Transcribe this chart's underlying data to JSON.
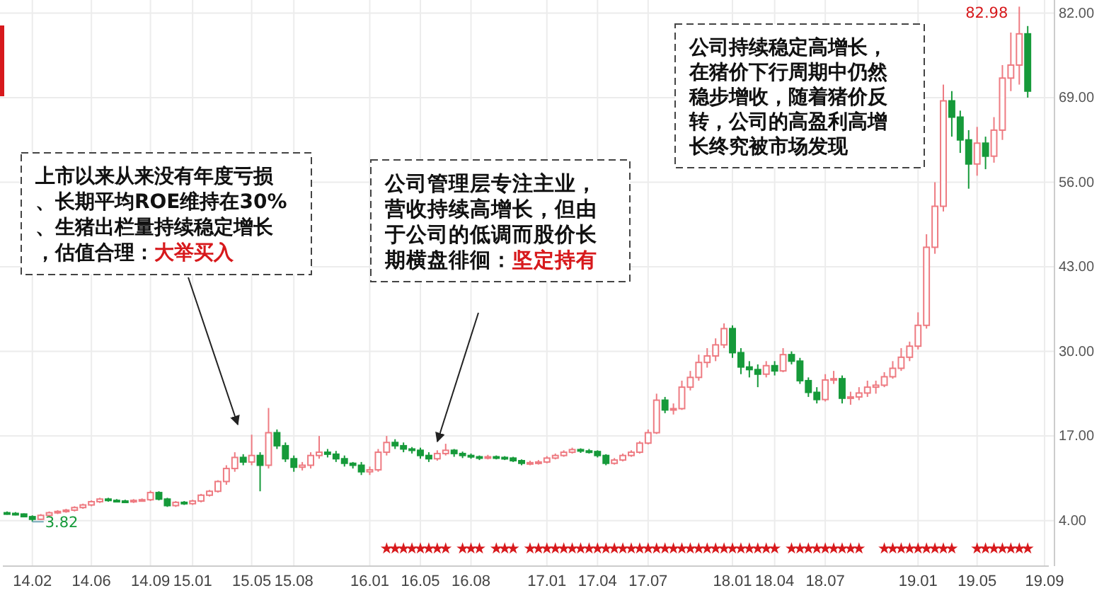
{
  "chart_data": {
    "type": "candlestick",
    "categories": [
      null,
      null,
      null,
      "14.02",
      null,
      null,
      null,
      null,
      null,
      null,
      "14.06",
      null,
      null,
      null,
      null,
      null,
      null,
      "14.09",
      null,
      null,
      null,
      null,
      "15.01",
      null,
      null,
      null,
      null,
      null,
      null,
      "15.05",
      null,
      null,
      null,
      null,
      "15.08",
      null,
      null,
      null,
      null,
      null,
      null,
      null,
      null,
      "16.01",
      null,
      null,
      null,
      null,
      null,
      "16.05",
      null,
      null,
      null,
      null,
      null,
      "16.08",
      null,
      null,
      null,
      null,
      null,
      null,
      null,
      null,
      "17.01",
      null,
      null,
      null,
      null,
      null,
      "17.04",
      null,
      null,
      null,
      null,
      null,
      "17.07",
      null,
      null,
      null,
      null,
      null,
      null,
      null,
      null,
      null,
      "18.01",
      null,
      null,
      null,
      null,
      "18.04",
      null,
      null,
      null,
      null,
      null,
      "18.07",
      null,
      null,
      null,
      null,
      null,
      null,
      null,
      null,
      null,
      null,
      "19.01",
      null,
      null,
      null,
      null,
      null,
      null,
      "19.05",
      null,
      null,
      null,
      null,
      null,
      null,
      null,
      "19.09"
    ],
    "ohlc": [
      [
        5.2,
        5.4,
        4.9,
        5.1
      ],
      [
        5.1,
        5.3,
        4.8,
        5.0
      ],
      [
        5.0,
        5.1,
        4.5,
        4.6
      ],
      [
        4.6,
        4.8,
        3.82,
        4.2
      ],
      [
        4.2,
        5.0,
        4.1,
        4.8
      ],
      [
        4.8,
        5.4,
        4.6,
        5.2
      ],
      [
        5.2,
        5.6,
        5.0,
        5.4
      ],
      [
        5.4,
        5.8,
        5.2,
        5.6
      ],
      [
        5.6,
        6.2,
        5.4,
        6.0
      ],
      [
        6.0,
        6.6,
        5.8,
        6.4
      ],
      [
        6.4,
        7.1,
        6.2,
        6.9
      ],
      [
        6.9,
        7.5,
        6.7,
        7.3
      ],
      [
        7.3,
        7.5,
        6.9,
        7.1
      ],
      [
        7.1,
        7.3,
        6.8,
        7.0
      ],
      [
        7.0,
        7.2,
        6.7,
        6.9
      ],
      [
        6.9,
        7.3,
        6.7,
        7.1
      ],
      [
        7.1,
        7.4,
        6.9,
        7.2
      ],
      [
        7.2,
        8.6,
        7.0,
        8.3
      ],
      [
        8.3,
        8.5,
        7.1,
        7.3
      ],
      [
        7.3,
        7.5,
        6.1,
        6.3
      ],
      [
        6.3,
        7.0,
        6.1,
        6.8
      ],
      [
        6.8,
        7.0,
        6.4,
        6.6
      ],
      [
        6.6,
        7.2,
        6.4,
        7.0
      ],
      [
        7.0,
        8.1,
        6.8,
        7.9
      ],
      [
        7.9,
        8.7,
        7.7,
        8.5
      ],
      [
        8.5,
        10.2,
        8.3,
        10.0
      ],
      [
        10.0,
        12.5,
        9.5,
        12.0
      ],
      [
        12.0,
        14.5,
        11.5,
        13.7
      ],
      [
        13.7,
        14.2,
        12.5,
        13.0
      ],
      [
        13.0,
        17.2,
        12.5,
        14.0
      ],
      [
        14.0,
        14.5,
        8.5,
        12.5
      ],
      [
        12.5,
        21.3,
        12.0,
        17.5
      ],
      [
        17.5,
        18.0,
        15.0,
        15.5
      ],
      [
        15.5,
        16.0,
        13.0,
        13.5
      ],
      [
        13.5,
        14.0,
        11.5,
        12.2
      ],
      [
        12.2,
        13.0,
        11.7,
        12.5
      ],
      [
        12.5,
        14.5,
        12.0,
        14.0
      ],
      [
        14.0,
        17.0,
        13.5,
        14.5
      ],
      [
        14.5,
        15.0,
        13.7,
        14.2
      ],
      [
        14.2,
        14.7,
        13.0,
        13.5
      ],
      [
        13.5,
        14.0,
        12.3,
        12.8
      ],
      [
        12.8,
        13.0,
        12.0,
        12.5
      ],
      [
        12.5,
        13.0,
        11.0,
        11.5
      ],
      [
        11.5,
        12.3,
        11.0,
        11.8
      ],
      [
        11.8,
        15.0,
        11.5,
        14.5
      ],
      [
        14.5,
        17.0,
        14.0,
        16.0
      ],
      [
        16.0,
        16.5,
        15.0,
        15.5
      ],
      [
        15.5,
        16.0,
        14.5,
        15.0
      ],
      [
        15.0,
        15.3,
        14.3,
        14.8
      ],
      [
        14.8,
        15.2,
        13.5,
        14.0
      ],
      [
        14.0,
        14.5,
        13.0,
        13.5
      ],
      [
        13.5,
        14.8,
        13.2,
        14.3
      ],
      [
        14.3,
        15.8,
        14.0,
        14.8
      ],
      [
        14.8,
        15.0,
        13.8,
        14.3
      ],
      [
        14.3,
        14.6,
        13.6,
        14.0
      ],
      [
        14.0,
        14.3,
        13.5,
        13.8
      ],
      [
        13.8,
        14.0,
        13.3,
        13.6
      ],
      [
        13.6,
        14.1,
        13.4,
        13.8
      ],
      [
        13.8,
        14.0,
        13.4,
        13.7
      ],
      [
        13.7,
        13.9,
        13.3,
        13.6
      ],
      [
        13.6,
        13.8,
        13.0,
        13.2
      ],
      [
        13.2,
        13.4,
        12.5,
        12.8
      ],
      [
        12.8,
        13.2,
        12.5,
        12.9
      ],
      [
        12.9,
        13.3,
        12.6,
        13.0
      ],
      [
        13.0,
        13.9,
        12.8,
        13.6
      ],
      [
        13.6,
        14.3,
        13.4,
        14.0
      ],
      [
        14.0,
        14.8,
        13.8,
        14.5
      ],
      [
        14.5,
        15.2,
        14.3,
        14.9
      ],
      [
        14.9,
        15.1,
        14.4,
        14.7
      ],
      [
        14.7,
        15.0,
        14.3,
        14.6
      ],
      [
        14.6,
        14.8,
        13.7,
        14.0
      ],
      [
        14.0,
        14.2,
        12.5,
        12.8
      ],
      [
        12.8,
        13.6,
        12.6,
        13.3
      ],
      [
        13.3,
        14.3,
        13.1,
        14.0
      ],
      [
        14.0,
        14.8,
        13.8,
        14.5
      ],
      [
        14.5,
        16.2,
        14.3,
        15.9
      ],
      [
        15.9,
        18.0,
        15.7,
        17.5
      ],
      [
        17.5,
        23.5,
        17.3,
        22.5
      ],
      [
        22.5,
        23.0,
        20.5,
        21.0
      ],
      [
        21.0,
        22.0,
        20.3,
        21.2
      ],
      [
        21.2,
        25.5,
        21.0,
        24.5
      ],
      [
        24.5,
        27.0,
        24.0,
        26.0
      ],
      [
        26.0,
        29.5,
        25.5,
        28.3
      ],
      [
        28.3,
        30.5,
        27.5,
        29.3
      ],
      [
        29.3,
        32.0,
        28.5,
        31.0
      ],
      [
        31.0,
        34.3,
        30.5,
        33.5
      ],
      [
        33.5,
        34.0,
        29.0,
        29.8
      ],
      [
        29.8,
        30.5,
        26.5,
        27.6
      ],
      [
        27.6,
        28.5,
        26.0,
        27.2
      ],
      [
        27.2,
        28.0,
        24.5,
        26.5
      ],
      [
        26.5,
        28.5,
        26.0,
        27.8
      ],
      [
        27.8,
        28.5,
        26.3,
        27.0
      ],
      [
        27.0,
        30.5,
        26.8,
        29.5
      ],
      [
        29.5,
        30.0,
        28.0,
        28.5
      ],
      [
        28.5,
        29.0,
        25.0,
        25.5
      ],
      [
        25.5,
        26.0,
        23.0,
        23.7
      ],
      [
        23.7,
        24.5,
        22.0,
        22.6
      ],
      [
        22.6,
        26.5,
        22.3,
        25.6
      ],
      [
        25.6,
        27.0,
        25.0,
        25.8
      ],
      [
        25.8,
        26.3,
        22.0,
        22.8
      ],
      [
        22.8,
        23.8,
        21.8,
        23.0
      ],
      [
        23.0,
        24.5,
        22.5,
        23.6
      ],
      [
        23.6,
        25.5,
        23.0,
        24.5
      ],
      [
        24.5,
        25.5,
        23.5,
        24.8
      ],
      [
        24.8,
        26.8,
        24.5,
        26.1
      ],
      [
        26.1,
        28.5,
        25.8,
        27.4
      ],
      [
        27.4,
        30.5,
        27.0,
        29.1
      ],
      [
        29.1,
        31.5,
        28.5,
        30.8
      ],
      [
        30.8,
        36.0,
        30.3,
        34.0
      ],
      [
        34.0,
        48.0,
        33.5,
        46.0
      ],
      [
        46.0,
        56.0,
        45.0,
        52.3
      ],
      [
        52.3,
        71.0,
        51.5,
        68.5
      ],
      [
        68.5,
        70.0,
        63.0,
        66.0
      ],
      [
        66.0,
        67.0,
        60.5,
        62.5
      ],
      [
        62.5,
        64.0,
        55.0,
        58.8
      ],
      [
        58.8,
        64.5,
        57.0,
        62.0
      ],
      [
        62.0,
        63.0,
        58.0,
        60.0
      ],
      [
        60.0,
        66.0,
        59.0,
        64.0
      ],
      [
        64.0,
        74.0,
        62.5,
        72.0
      ],
      [
        72.0,
        79.0,
        70.0,
        74.0
      ],
      [
        74.0,
        82.98,
        71.0,
        78.8
      ],
      [
        78.8,
        80.0,
        69.0,
        70.0
      ],
      null,
      null
    ],
    "series": [
      {
        "type": "scatter",
        "color": "#d7191c",
        "marker": "star",
        "values": [
          null,
          null,
          null,
          null,
          null,
          null,
          null,
          null,
          null,
          null,
          null,
          null,
          null,
          null,
          null,
          null,
          null,
          null,
          null,
          null,
          null,
          null,
          null,
          null,
          null,
          null,
          null,
          null,
          null,
          null,
          null,
          null,
          null,
          null,
          null,
          null,
          null,
          null,
          null,
          null,
          null,
          null,
          null,
          null,
          null,
          -0.3,
          -0.3,
          -0.3,
          -0.3,
          -0.3,
          -0.3,
          -0.3,
          -0.3,
          null,
          -0.3,
          -0.3,
          -0.3,
          null,
          -0.3,
          -0.3,
          -0.3,
          null,
          -0.3,
          -0.3,
          -0.3,
          -0.3,
          -0.3,
          -0.3,
          -0.3,
          -0.3,
          -0.3,
          -0.3,
          -0.3,
          -0.3,
          -0.3,
          -0.3,
          -0.3,
          -0.3,
          -0.3,
          -0.3,
          -0.3,
          -0.3,
          -0.3,
          -0.3,
          -0.3,
          -0.3,
          -0.3,
          -0.3,
          -0.3,
          -0.3,
          -0.3,
          -0.3,
          null,
          -0.3,
          -0.3,
          -0.3,
          -0.3,
          -0.3,
          -0.3,
          -0.3,
          -0.3,
          -0.3,
          null,
          null,
          -0.3,
          -0.3,
          -0.3,
          -0.3,
          -0.3,
          -0.3,
          -0.3,
          -0.3,
          -0.3,
          null,
          null,
          -0.3,
          -0.3,
          -0.3,
          -0.3,
          -0.3,
          -0.3,
          -0.3,
          null,
          null
        ]
      }
    ],
    "ylim": [
      -3,
      84
    ],
    "yticks": [
      {
        "value": 4,
        "label": "4.00"
      },
      {
        "value": 17,
        "label": "17.00"
      },
      {
        "value": 30,
        "label": "30.00"
      },
      {
        "value": 43,
        "label": "43.00"
      },
      {
        "value": 56,
        "label": "56.00"
      },
      {
        "value": 69,
        "label": "69.00"
      },
      {
        "value": 82,
        "label": "82.00"
      }
    ],
    "grid": true,
    "annotations": [
      "上市以来从来没有年度亏损、长期平均ROE维持在30%、生猪出栏量持续稳定增长，估值合理：",
      "大举买入",
      "公司管理层专注主业，营收持续高增长，但由于公司的低调而股价长期横盘徘徊：",
      "坚定持有",
      "公司持续稳定高增长，在猪价下行周期中仍然稳步增收，随着猪价反转，公司的高盈利高增长终究被市场发现",
      "82.98",
      "3.82"
    ]
  }
}
